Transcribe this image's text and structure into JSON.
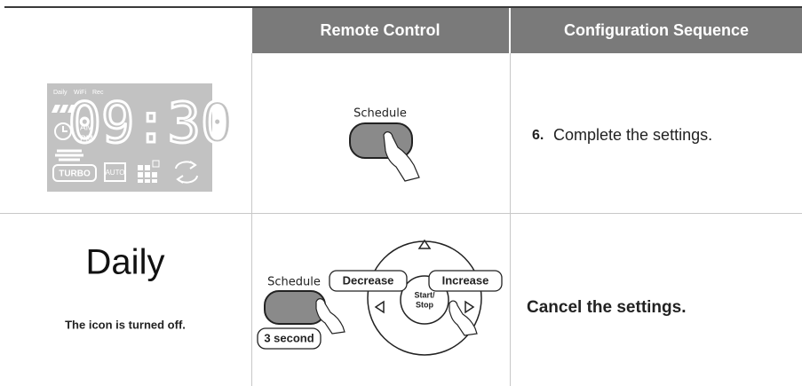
{
  "header": {
    "remote": "Remote Control",
    "sequence": "Configuration Sequence"
  },
  "rows": [
    {
      "display": {
        "labels": [
          "Daily",
          "WiFi",
          "Rec"
        ],
        "time": "09:30",
        "am": "AM",
        "pm": "PM",
        "turbo": "TURBO",
        "auto": "AUTO"
      },
      "remote": {
        "schedule": "Schedule"
      },
      "step": {
        "number": "6.",
        "text": "Complete the settings."
      }
    },
    {
      "display": {
        "title": "Daily",
        "note": "The icon is turned off."
      },
      "remote": {
        "schedule": "Schedule",
        "decrease": "Decrease",
        "increase": "Increase",
        "start_stop": [
          "Start/",
          "Stop"
        ],
        "hold": "3 second"
      },
      "step": {
        "text": "Cancel the settings."
      }
    }
  ]
}
